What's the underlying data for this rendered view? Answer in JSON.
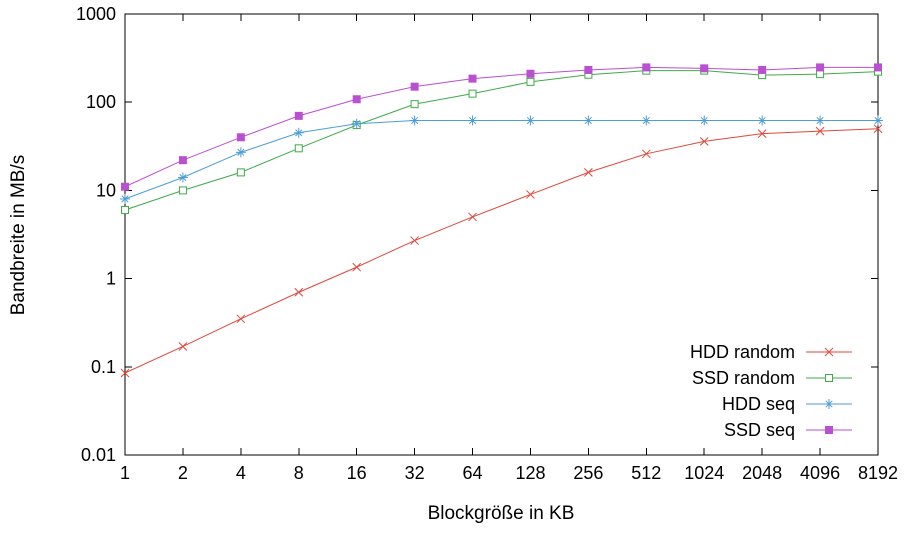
{
  "chart_data": {
    "type": "line",
    "x": [
      1,
      2,
      4,
      8,
      16,
      32,
      64,
      128,
      256,
      512,
      1024,
      2048,
      4096,
      8192
    ],
    "x_tick_labels": [
      "1",
      "2",
      "4",
      "8",
      "16",
      "32",
      "64",
      "128",
      "256",
      "512",
      "1024",
      "2048",
      "4096",
      "8192"
    ],
    "x_scale": "log2",
    "y_scale": "log10",
    "ylim": [
      0.01,
      1000
    ],
    "y_ticks": [
      0.01,
      0.1,
      1,
      10,
      100,
      1000
    ],
    "y_tick_labels": [
      "0.01",
      "0.1",
      "1",
      "10",
      "100",
      "1000"
    ],
    "xlabel": "Blockgröße in KB",
    "ylabel": "Bandbreite in MB/s",
    "grid": false,
    "legend_position": "inside-bottom-right",
    "series": [
      {
        "name": "HDD random",
        "color": "#e0473c",
        "marker": "x",
        "values": [
          0.085,
          0.17,
          0.35,
          0.7,
          1.35,
          2.7,
          5,
          9,
          16,
          26,
          36,
          44,
          47,
          50
        ]
      },
      {
        "name": "SSD random",
        "color": "#3fab49",
        "marker": "open-square",
        "values": [
          6,
          10,
          16,
          30,
          55,
          95,
          125,
          170,
          205,
          228,
          228,
          203,
          208,
          222
        ]
      },
      {
        "name": "HDD seq",
        "color": "#4d9ed6",
        "marker": "asterisk",
        "values": [
          8,
          14,
          27,
          45,
          57,
          62,
          62,
          62,
          62,
          62,
          62,
          62,
          62,
          62
        ]
      },
      {
        "name": "SSD seq",
        "color": "#b94fd1",
        "marker": "filled-square",
        "values": [
          11,
          22,
          40,
          70,
          108,
          150,
          185,
          210,
          232,
          248,
          242,
          232,
          248,
          248
        ]
      }
    ]
  }
}
